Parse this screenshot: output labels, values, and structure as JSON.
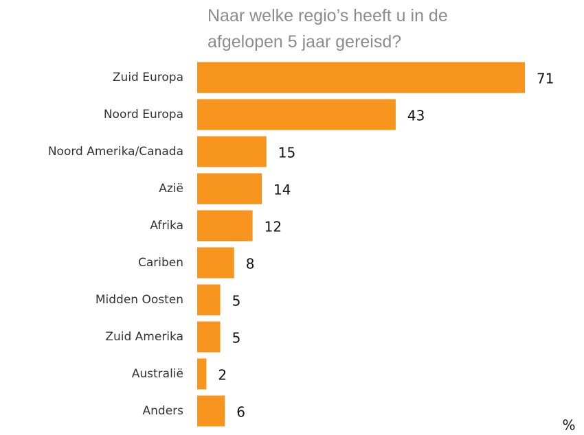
{
  "chart_data": {
    "type": "bar",
    "orientation": "horizontal",
    "title": "Naar welke regio’s heeft u in de afgelopen 5 jaar gereisd?",
    "unit": "%",
    "categories": [
      "Zuid Europa",
      "Noord Europa",
      "Noord Amerika/Canada",
      "Azië",
      "Afrika",
      "Cariben",
      "Midden Oosten",
      "Zuid Amerika",
      "Australië",
      "Anders"
    ],
    "values": [
      71,
      43,
      15,
      14,
      12,
      8,
      5,
      5,
      2,
      6
    ],
    "color": "#f7941d",
    "xlim": [
      0,
      71
    ]
  }
}
